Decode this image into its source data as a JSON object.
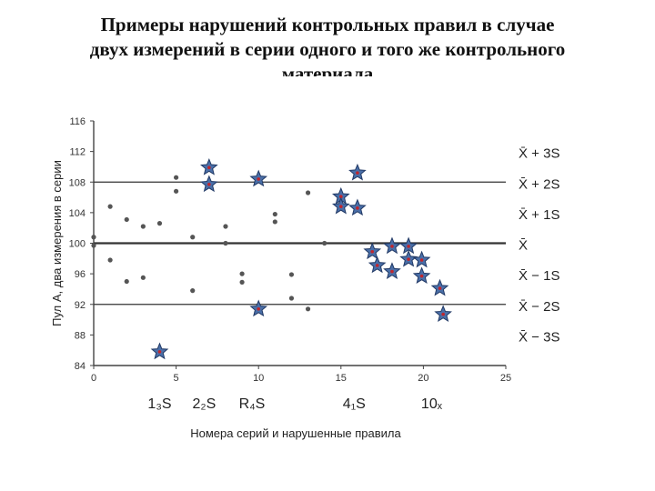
{
  "slide": {
    "title_lines": [
      "Примеры нарушений контрольных правил в случае",
      "двух измерений в серии одного и того же контрольного",
      "материала"
    ]
  },
  "chart_data": {
    "type": "scatter",
    "xlabel": "Номера серий и нарушенные правила",
    "ylabel": "Пул А, два измерения в серии",
    "xlim": [
      0,
      25
    ],
    "ylim": [
      84,
      116
    ],
    "x_ticks": [
      0,
      5,
      10,
      15,
      20,
      25
    ],
    "y_ticks": [
      84,
      88,
      92,
      96,
      100,
      104,
      108,
      112,
      116
    ],
    "control_lines": [
      {
        "label": "X̄ + 3S",
        "value": 112,
        "drawn": false
      },
      {
        "label": "X̄ + 2S",
        "value": 108,
        "drawn": true
      },
      {
        "label": "X̄ + 1S",
        "value": 104,
        "drawn": false
      },
      {
        "label": "X̄",
        "value": 100,
        "drawn": true
      },
      {
        "label": "X̄ − 1S",
        "value": 96,
        "drawn": false
      },
      {
        "label": "X̄ − 2S",
        "value": 92,
        "drawn": true
      },
      {
        "label": "X̄ − 3S",
        "value": 88,
        "drawn": false
      }
    ],
    "rule_labels": [
      {
        "label": "1₃S",
        "x": 4
      },
      {
        "label": "2₂S",
        "x": 6.7
      },
      {
        "label": "R₄S",
        "x": 9.6
      },
      {
        "label": "4₁S",
        "x": 15.8
      },
      {
        "label": "10ₓ",
        "x": 20.5
      }
    ],
    "series": [
      {
        "name": "",
        "style": "dot",
        "points": [
          [
            0,
            100.8
          ],
          [
            0,
            99.7
          ],
          [
            1,
            104.8
          ],
          [
            1,
            97.8
          ],
          [
            2,
            103.1
          ],
          [
            2,
            95
          ],
          [
            3,
            102.2
          ],
          [
            3,
            95.5
          ],
          [
            4,
            102.6
          ],
          [
            5,
            108.6
          ],
          [
            5,
            106.8
          ],
          [
            6,
            100.8
          ],
          [
            6,
            93.8
          ],
          [
            8,
            102.2
          ],
          [
            8,
            100
          ],
          [
            9,
            96
          ],
          [
            9,
            94.9
          ],
          [
            10,
            91.6
          ],
          [
            11,
            103.8
          ],
          [
            11,
            102.8
          ],
          [
            12,
            95.9
          ],
          [
            12,
            92.8
          ],
          [
            13,
            106.6
          ],
          [
            13,
            91.4
          ],
          [
            14,
            100
          ]
        ]
      },
      {
        "name": "",
        "style": "star",
        "points": [
          [
            4,
            85.8
          ],
          [
            7,
            109.9
          ],
          [
            7,
            107.7
          ],
          [
            10,
            108.4
          ],
          [
            10,
            91.4
          ],
          [
            15,
            106.1
          ],
          [
            15,
            104.8
          ],
          [
            16,
            109.2
          ],
          [
            16,
            104.6
          ],
          [
            16.9,
            98.9
          ],
          [
            17.2,
            97.1
          ],
          [
            18.1,
            99.6
          ],
          [
            18.1,
            96.3
          ],
          [
            19.1,
            99.6
          ],
          [
            19.1,
            97.9
          ],
          [
            19.9,
            97.8
          ],
          [
            19.9,
            95.7
          ],
          [
            21,
            94.1
          ],
          [
            21.2,
            90.7
          ]
        ]
      }
    ]
  }
}
